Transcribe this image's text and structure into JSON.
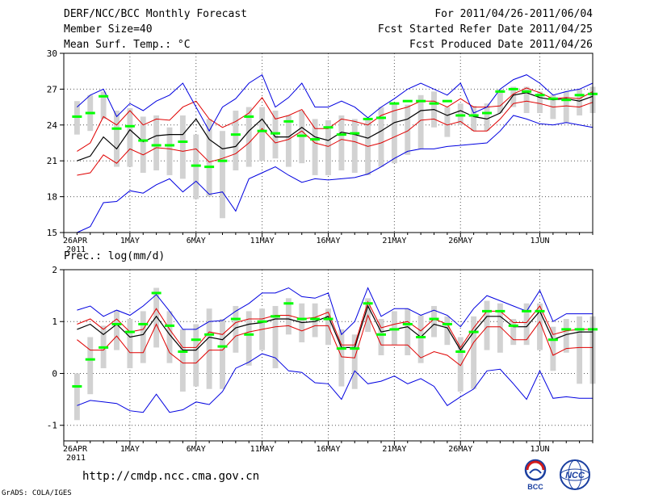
{
  "header": {
    "title": "DERF/NCC/BCC Monthly Forecast",
    "member_size": "Member Size=40",
    "variable": "Mean Surf. Temp.: °C",
    "period": "For 2011/04/26-2011/06/04",
    "started": "Fcst Started Refer Date 2011/04/25",
    "produced": "Fcst Produced Date 2011/04/26"
  },
  "footer": {
    "url": "http://cmdp.ncc.cma.gov.cn",
    "credit": "GrADS: COLA/IGES"
  },
  "logos": {
    "bcc": "BCC",
    "ncc": "NCC"
  },
  "colors": {
    "box": "#d2d2d2",
    "median": "#00ff00",
    "mean": "#000000",
    "inner": "#e00000",
    "outer": "#0000e0",
    "grid": "#555555"
  },
  "chart_data": [
    {
      "type": "line",
      "name": "temperature",
      "ylabel": "Mean Surf. Temp.: °C",
      "ylim": [
        15,
        30
      ],
      "yticks": [
        15,
        18,
        21,
        24,
        27,
        30
      ],
      "xlim": [
        0,
        40
      ],
      "xticks": [
        0,
        5,
        10,
        15,
        20,
        25,
        30,
        36
      ],
      "xtick_labels": [
        "26APR",
        "1MAY",
        "6MAY",
        "11MAY",
        "16MAY",
        "21MAY",
        "26MAY",
        "1JUN"
      ],
      "xtick_sublabel": "2011",
      "grid": true,
      "x": [
        1,
        2,
        3,
        4,
        5,
        6,
        7,
        8,
        9,
        10,
        11,
        12,
        13,
        14,
        15,
        16,
        17,
        18,
        19,
        20,
        21,
        22,
        23,
        24,
        25,
        26,
        27,
        28,
        29,
        30,
        31,
        32,
        33,
        34,
        35,
        36,
        37,
        38,
        39,
        40
      ],
      "series": [
        {
          "name": "max",
          "values": [
            15.0,
            15.5,
            17.5,
            17.6,
            18.5,
            18.3,
            19.0,
            19.5,
            18.4,
            19.3,
            18.2,
            18.4,
            16.8,
            19.5,
            20.0,
            20.5,
            19.8,
            19.2,
            19.5,
            19.4,
            19.5,
            19.6,
            19.9,
            20.5,
            21.2,
            21.8,
            22.0,
            22.0,
            22.2,
            22.3,
            22.4,
            22.5,
            23.5,
            24.8,
            24.5,
            24.1,
            24.0,
            24.2,
            24.0,
            23.8
          ]
        },
        {
          "name": "p10",
          "values": [
            19.8,
            20.0,
            21.5,
            20.8,
            22.0,
            21.5,
            22.1,
            22.0,
            21.8,
            22.0,
            20.9,
            21.2,
            21.6,
            22.5,
            23.7,
            22.5,
            22.8,
            23.5,
            22.5,
            22.2,
            22.8,
            22.6,
            22.2,
            22.5,
            23.0,
            23.5,
            24.4,
            24.5,
            24.0,
            24.3,
            23.5,
            23.5,
            24.5,
            25.8,
            26.0,
            25.8,
            25.5,
            25.6,
            25.5,
            25.9
          ]
        },
        {
          "name": "mean",
          "values": [
            21.0,
            21.4,
            23.0,
            22.0,
            23.6,
            22.6,
            23.1,
            23.2,
            23.2,
            24.5,
            22.8,
            22.0,
            22.2,
            23.5,
            24.5,
            23.0,
            23.0,
            23.8,
            23.0,
            22.7,
            23.4,
            23.2,
            22.9,
            23.5,
            24.2,
            24.5,
            25.2,
            25.3,
            24.8,
            25.2,
            24.7,
            24.5,
            25.0,
            26.5,
            26.7,
            26.3,
            26.1,
            26.2,
            26.0,
            26.4
          ]
        },
        {
          "name": "p90",
          "values": [
            21.8,
            22.5,
            24.7,
            24.0,
            25.2,
            24.0,
            24.5,
            24.4,
            25.5,
            26.0,
            24.5,
            23.8,
            24.3,
            25.0,
            26.3,
            24.5,
            24.8,
            25.3,
            23.7,
            23.7,
            24.5,
            24.3,
            24.0,
            24.8,
            25.2,
            25.5,
            26.0,
            26.0,
            25.5,
            26.2,
            25.5,
            25.5,
            25.6,
            26.6,
            27.1,
            26.7,
            26.2,
            26.3,
            26.2,
            26.8
          ]
        },
        {
          "name": "min",
          "values": [
            25.5,
            26.5,
            27.0,
            24.7,
            25.8,
            25.2,
            26.0,
            26.5,
            27.5,
            25.5,
            23.5,
            25.5,
            26.2,
            27.5,
            28.2,
            25.5,
            26.3,
            27.5,
            25.5,
            25.5,
            26.0,
            25.5,
            24.6,
            25.5,
            26.2,
            27.0,
            27.5,
            27.0,
            26.5,
            27.5,
            25.0,
            25.5,
            27.0,
            27.8,
            28.2,
            27.5,
            26.5,
            26.8,
            27.0,
            27.5
          ]
        },
        {
          "name": "median",
          "values": [
            24.7,
            25.0,
            26.4,
            23.7,
            23.9,
            22.7,
            22.3,
            22.3,
            22.6,
            20.6,
            20.5,
            21.0,
            23.2,
            24.7,
            23.5,
            23.3,
            24.3,
            23.1,
            22.8,
            23.8,
            23.2,
            23.3,
            24.5,
            24.6,
            25.8,
            26.0,
            26.0,
            25.8,
            26.0,
            24.8,
            24.8,
            25.0,
            26.8,
            27.0,
            26.8,
            26.5,
            26.2,
            26.1,
            26.5,
            26.6
          ]
        }
      ],
      "boxes": {
        "low": [
          23.2,
          23.5,
          24.5,
          20.5,
          20.5,
          20.0,
          20.2,
          19.8,
          19.5,
          17.8,
          18.0,
          16.2,
          20.2,
          20.5,
          21.0,
          21.2,
          20.5,
          20.8,
          19.8,
          19.8,
          20.2,
          20.0,
          19.8,
          20.5,
          20.8,
          21.5,
          22.0,
          23.8,
          23.0,
          24.0,
          23.5,
          23.5,
          25.0,
          25.5,
          25.0,
          25.0,
          24.5,
          24.2,
          24.8,
          25.0
        ],
        "high": [
          26.0,
          26.5,
          26.8,
          25.2,
          25.4,
          24.7,
          24.8,
          23.8,
          24.8,
          23.2,
          24.5,
          23.5,
          25.2,
          25.5,
          25.5,
          25.2,
          24.8,
          25.2,
          24.5,
          24.4,
          24.8,
          24.5,
          24.6,
          25.5,
          25.8,
          25.7,
          26.5,
          26.8,
          25.5,
          25.8,
          25.6,
          25.8,
          27.0,
          27.2,
          27.2,
          26.8,
          26.5,
          26.8,
          27.0,
          27.2
        ]
      }
    },
    {
      "type": "line",
      "name": "precipitation",
      "ylabel": "Prec.: log(mm/d)",
      "ylim": [
        -1.3,
        2
      ],
      "yticks": [
        -1,
        0,
        1,
        2
      ],
      "xlim": [
        0,
        40
      ],
      "xticks": [
        0,
        5,
        10,
        15,
        20,
        25,
        30,
        36
      ],
      "xtick_labels": [
        "26APR",
        "1MAY",
        "6MAY",
        "11MAY",
        "16MAY",
        "21MAY",
        "26MAY",
        "1JUN"
      ],
      "xtick_sublabel": "2011",
      "grid": true,
      "x": [
        1,
        2,
        3,
        4,
        5,
        6,
        7,
        8,
        9,
        10,
        11,
        12,
        13,
        14,
        15,
        16,
        17,
        18,
        19,
        20,
        21,
        22,
        23,
        24,
        25,
        26,
        27,
        28,
        29,
        30,
        31,
        32,
        33,
        34,
        35,
        36,
        37,
        38,
        39,
        40
      ],
      "series": [
        {
          "name": "max",
          "values": [
            -0.62,
            -0.52,
            -0.55,
            -0.58,
            -0.72,
            -0.75,
            -0.4,
            -0.75,
            -0.7,
            -0.55,
            -0.6,
            -0.35,
            0.1,
            0.22,
            0.38,
            0.3,
            0.05,
            0.02,
            -0.18,
            -0.2,
            -0.5,
            0.05,
            -0.2,
            -0.15,
            -0.05,
            -0.2,
            -0.1,
            -0.25,
            -0.62,
            -0.45,
            -0.3,
            0.05,
            0.08,
            -0.2,
            -0.5,
            0.05,
            -0.48,
            -0.45,
            -0.48,
            -0.48
          ]
        },
        {
          "name": "p10",
          "values": [
            0.65,
            0.45,
            0.45,
            0.72,
            0.4,
            0.4,
            0.95,
            0.4,
            0.2,
            0.2,
            0.45,
            0.45,
            0.72,
            0.8,
            0.85,
            0.9,
            0.92,
            0.82,
            0.92,
            0.92,
            0.32,
            0.3,
            1.12,
            0.55,
            0.55,
            0.55,
            0.3,
            0.42,
            0.35,
            0.15,
            0.6,
            0.9,
            0.9,
            0.65,
            0.65,
            1.0,
            0.35,
            0.48,
            0.5,
            0.5
          ]
        },
        {
          "name": "mean",
          "values": [
            0.85,
            0.95,
            0.75,
            0.95,
            0.7,
            0.75,
            1.1,
            0.75,
            0.45,
            0.45,
            0.7,
            0.65,
            0.88,
            0.95,
            0.98,
            1.05,
            1.05,
            0.98,
            1.0,
            1.1,
            0.5,
            0.5,
            1.3,
            0.8,
            0.85,
            0.9,
            0.7,
            0.95,
            0.88,
            0.45,
            0.8,
            1.1,
            1.1,
            0.9,
            0.9,
            1.2,
            0.65,
            0.75,
            0.8,
            0.8
          ]
        },
        {
          "name": "p90",
          "values": [
            0.95,
            1.05,
            0.85,
            1.05,
            0.8,
            0.85,
            1.25,
            0.85,
            0.5,
            0.5,
            0.8,
            0.75,
            0.98,
            1.05,
            1.05,
            1.12,
            1.12,
            1.05,
            1.08,
            1.18,
            0.55,
            0.55,
            1.38,
            0.88,
            0.95,
            1.0,
            0.82,
            1.05,
            0.95,
            0.5,
            0.88,
            1.2,
            1.2,
            0.98,
            0.98,
            1.3,
            0.75,
            0.82,
            0.85,
            0.85
          ]
        },
        {
          "name": "min",
          "values": [
            1.22,
            1.3,
            1.1,
            1.22,
            1.12,
            1.3,
            1.52,
            1.2,
            0.85,
            0.85,
            1.0,
            1.02,
            1.2,
            1.35,
            1.55,
            1.55,
            1.65,
            1.48,
            1.45,
            1.55,
            0.75,
            1.0,
            1.65,
            1.1,
            1.25,
            1.25,
            1.12,
            1.22,
            1.12,
            0.9,
            1.25,
            1.5,
            1.4,
            1.3,
            1.2,
            1.6,
            1.0,
            1.15,
            1.15,
            1.15
          ]
        },
        {
          "name": "median",
          "values": [
            -0.25,
            0.27,
            0.5,
            0.95,
            0.8,
            0.95,
            1.55,
            0.92,
            0.42,
            0.65,
            0.75,
            0.52,
            1.05,
            0.75,
            1.0,
            1.1,
            1.35,
            1.05,
            1.05,
            1.05,
            0.48,
            0.48,
            1.35,
            0.75,
            0.85,
            0.95,
            0.7,
            1.05,
            0.95,
            0.42,
            0.8,
            1.2,
            1.2,
            0.92,
            1.2,
            1.2,
            0.65,
            0.85,
            0.85,
            0.85
          ]
        }
      ],
      "boxes": {
        "low": [
          -0.9,
          -0.4,
          0.1,
          0.45,
          0.1,
          0.2,
          0.5,
          0.2,
          -0.35,
          -0.25,
          -0.3,
          -0.3,
          0.4,
          0.15,
          0.45,
          0.1,
          0.75,
          0.6,
          0.7,
          0.55,
          -0.25,
          -0.3,
          0.8,
          0.35,
          0.55,
          0.35,
          0.2,
          0.7,
          0.55,
          -0.35,
          -0.3,
          0.45,
          0.4,
          0.55,
          0.55,
          0.45,
          0.05,
          0.4,
          -0.2,
          -0.2
        ],
        "high": [
          0.0,
          0.7,
          0.92,
          1.22,
          1.05,
          1.2,
          1.65,
          1.2,
          0.85,
          0.95,
          1.25,
          1.05,
          1.3,
          1.2,
          1.25,
          1.3,
          1.45,
          1.35,
          1.35,
          1.25,
          0.85,
          0.75,
          1.45,
          1.05,
          1.2,
          1.25,
          1.12,
          1.3,
          1.1,
          0.7,
          1.1,
          1.4,
          1.35,
          1.05,
          1.35,
          1.35,
          0.9,
          1.05,
          1.1,
          1.1
        ]
      }
    }
  ]
}
